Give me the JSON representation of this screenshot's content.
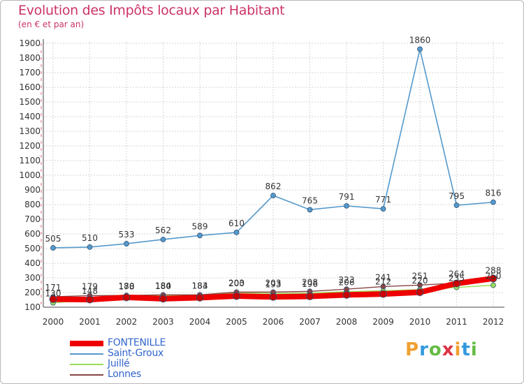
{
  "header": {
    "title": "Evolution des Impôts locaux par Habitant",
    "subtitle": "(en € et par an)"
  },
  "logo": {
    "letters": [
      "P",
      "r",
      "o",
      "x",
      "i",
      "t",
      "i"
    ],
    "colors": [
      "#f0a030",
      "#3399dd",
      "#66bb44",
      "#dd3344",
      "#f0a030",
      "#3399dd",
      "#66bb44"
    ]
  },
  "chart_data": {
    "type": "line",
    "title": "Evolution des Impôts locaux par Habitant",
    "subtitle": "(en € et par an)",
    "xlabel": "",
    "ylabel": "",
    "ylim": [
      100,
      1900
    ],
    "yticks": [
      100,
      200,
      300,
      400,
      500,
      600,
      700,
      800,
      900,
      1000,
      1100,
      1200,
      1300,
      1400,
      1500,
      1600,
      1700,
      1800,
      1900
    ],
    "categories": [
      "2000",
      "2001",
      "2002",
      "2003",
      "2004",
      "2005",
      "2006",
      "2007",
      "2008",
      "2009",
      "2010",
      "2011",
      "2012"
    ],
    "grid": true,
    "legend_position": "bottom-left",
    "series": [
      {
        "name": "FONTENILLE",
        "color": "#ee0000",
        "values": [
          155,
          152,
          167,
          158,
          165,
          176,
          170,
          174,
          184,
          190,
          202,
          262,
          296
        ]
      },
      {
        "name": "Saint-Groux",
        "color": "#5599cc",
        "values": [
          505,
          510,
          533,
          562,
          589,
          610,
          862,
          765,
          791,
          771,
          1860,
          795,
          816
        ]
      },
      {
        "name": "Juillé",
        "color": "#99dd55",
        "values": [
          130,
          148,
          178,
          180,
          183,
          200,
          193,
          196,
          206,
          212,
          220,
          235,
          250
        ]
      },
      {
        "name": "Lonnes",
        "color": "#884444",
        "values": [
          171,
          179,
          180,
          184,
          184,
          203,
          203,
          208,
          223,
          241,
          251,
          264,
          288
        ]
      }
    ],
    "data_labels": [
      [
        "",
        "",
        "",
        "",
        "",
        "",
        "",
        "",
        "",
        "",
        "",
        "",
        ""
      ],
      [
        "505",
        "510",
        "533",
        "562",
        "589",
        "610",
        "862",
        "765",
        "791",
        "771",
        "1860",
        "795",
        "816"
      ],
      [
        "130",
        "148",
        "178",
        "180",
        "183",
        "200",
        "193",
        "196",
        "206",
        "212",
        "220",
        "235",
        "250"
      ],
      [
        "171",
        "179",
        "180",
        "184",
        "184",
        "203",
        "203",
        "208",
        "223",
        "241",
        "251",
        "264",
        "288"
      ]
    ]
  }
}
